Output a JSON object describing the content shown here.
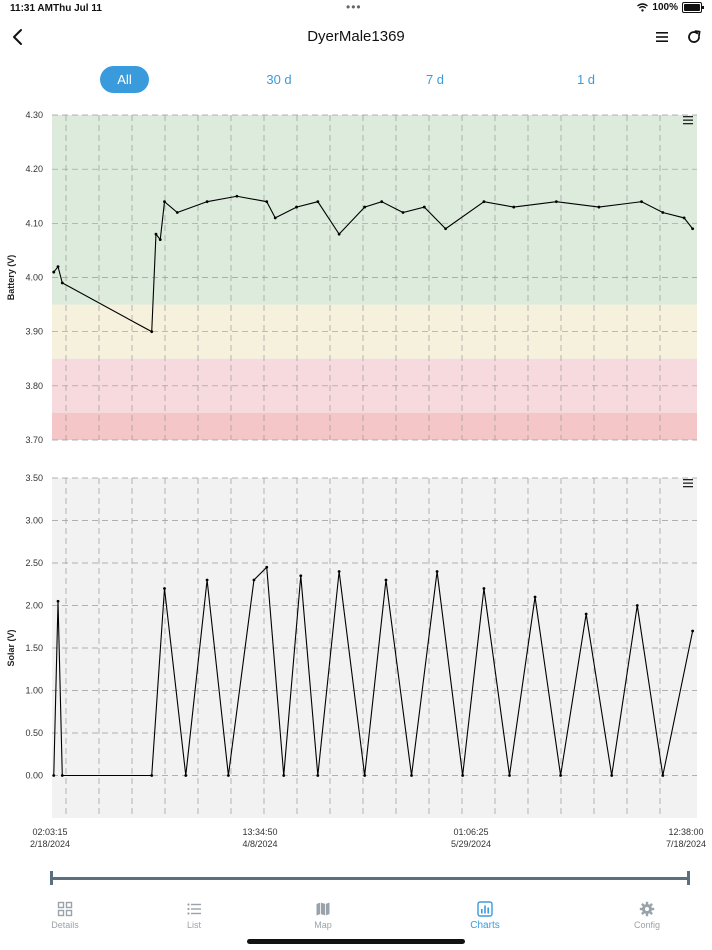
{
  "status_bar": {
    "time": "11:31 AM",
    "date": "Thu Jul 11",
    "battery": "100%"
  },
  "nav": {
    "title": "DyerMale1369",
    "back_icon": "chevron-left-icon",
    "menu_icon": "hamburger-menu-icon",
    "refresh_icon": "refresh-icon"
  },
  "segments": [
    {
      "label": "All",
      "active": true
    },
    {
      "label": "30 d",
      "active": false
    },
    {
      "label": "7 d",
      "active": false
    },
    {
      "label": "1 d",
      "active": false
    }
  ],
  "colors": {
    "accent": "#3a9bdc",
    "zone_green": "#dcebdc",
    "zone_yellow": "#f6f1dc",
    "zone_pink": "#f6dadd",
    "zone_red": "#f4c6c7",
    "plot_gray": "#f2f2f2",
    "line": "#000000"
  },
  "chart_data": [
    {
      "type": "line",
      "ylabel": "Battery (V)",
      "ylim": [
        3.7,
        4.3
      ],
      "yticks": [
        "4.30",
        "4.20",
        "4.10",
        "4.00",
        "3.90",
        "3.80",
        "3.70"
      ],
      "zones": [
        {
          "from": 3.95,
          "to": 4.3,
          "color": "#dcebdc"
        },
        {
          "from": 3.85,
          "to": 3.95,
          "color": "#f6f1dc"
        },
        {
          "from": 3.75,
          "to": 3.85,
          "color": "#f6dadd"
        },
        {
          "from": 3.7,
          "to": 3.75,
          "color": "#f4c6c7"
        }
      ],
      "grid": true,
      "series": [
        {
          "x": [
            "2024-02-18",
            "2024-02-19",
            "2024-02-20",
            "2024-03-12",
            "2024-03-13",
            "2024-03-14",
            "2024-03-15",
            "2024-03-18",
            "2024-03-25",
            "2024-04-01",
            "2024-04-08",
            "2024-04-10",
            "2024-04-15",
            "2024-04-20",
            "2024-04-25",
            "2024-05-01",
            "2024-05-05",
            "2024-05-10",
            "2024-05-15",
            "2024-05-20",
            "2024-05-29",
            "2024-06-05",
            "2024-06-15",
            "2024-06-25",
            "2024-07-05",
            "2024-07-10",
            "2024-07-15",
            "2024-07-17"
          ],
          "y": [
            4.01,
            4.02,
            3.99,
            3.9,
            4.08,
            4.07,
            4.14,
            4.12,
            4.14,
            4.15,
            4.14,
            4.11,
            4.13,
            4.14,
            4.08,
            4.13,
            4.14,
            4.12,
            4.13,
            4.09,
            4.14,
            4.13,
            4.14,
            4.13,
            4.14,
            4.12,
            4.11,
            4.09
          ]
        }
      ]
    },
    {
      "type": "line",
      "ylabel": "Solar (V)",
      "ylim": [
        -0.5,
        3.5
      ],
      "yticks": [
        "3.50",
        "3.00",
        "2.50",
        "2.00",
        "1.50",
        "1.00",
        "0.50",
        "0.00"
      ],
      "grid": true,
      "series": [
        {
          "x": [
            "2024-02-18",
            "2024-02-19",
            "2024-02-20",
            "2024-03-12",
            "2024-03-15",
            "2024-03-20",
            "2024-03-25",
            "2024-03-30",
            "2024-04-05",
            "2024-04-08",
            "2024-04-12",
            "2024-04-16",
            "2024-04-20",
            "2024-04-25",
            "2024-05-01",
            "2024-05-06",
            "2024-05-12",
            "2024-05-18",
            "2024-05-24",
            "2024-05-29",
            "2024-06-04",
            "2024-06-10",
            "2024-06-16",
            "2024-06-22",
            "2024-06-28",
            "2024-07-04",
            "2024-07-10",
            "2024-07-17"
          ],
          "y": [
            0.0,
            2.05,
            0.0,
            0.0,
            2.2,
            0.0,
            2.3,
            0.0,
            2.3,
            2.45,
            0.0,
            2.35,
            0.0,
            2.4,
            0.0,
            2.3,
            0.0,
            2.4,
            0.0,
            2.2,
            0.0,
            2.1,
            0.0,
            1.9,
            0.0,
            2.0,
            0.0,
            1.7
          ]
        }
      ]
    }
  ],
  "x_axis": {
    "ticks": [
      {
        "time": "02:03:15",
        "date": "2/18/2024"
      },
      {
        "time": "13:34:50",
        "date": "4/8/2024"
      },
      {
        "time": "01:06:25",
        "date": "5/29/2024"
      },
      {
        "time": "12:38:00",
        "date": "7/18/2024"
      }
    ]
  },
  "chart_menu_icon": "chart-menu-icon",
  "tabs": [
    {
      "label": "Details",
      "icon": "grid-icon",
      "active": false
    },
    {
      "label": "List",
      "icon": "list-icon",
      "active": false
    },
    {
      "label": "Map",
      "icon": "map-icon",
      "active": false
    },
    {
      "label": "Charts",
      "icon": "bar-chart-icon",
      "active": true
    },
    {
      "label": "Config",
      "icon": "gear-icon",
      "active": false
    }
  ]
}
